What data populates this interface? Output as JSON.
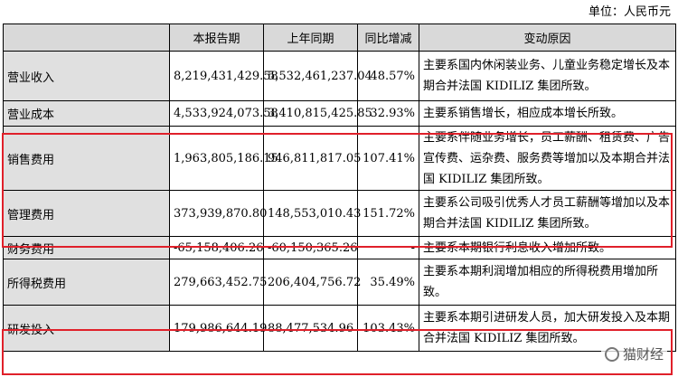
{
  "unit_label": "单位：人民币元",
  "headers": [
    "",
    "本报告期",
    "上年同期",
    "同比增减",
    "变动原因"
  ],
  "rows": [
    {
      "item": "营业收入",
      "current": "8,219,431,429.58",
      "prior": "5,532,461,237.04",
      "change": "48.57%",
      "reason": "主要系国内休闲装业务、儿童业务稳定增长及本期合并法国 KIDILIZ 集团所致。"
    },
    {
      "item": "营业成本",
      "current": "4,533,924,073.58",
      "prior": "3,410,815,425.85",
      "change": "32.93%",
      "reason": "主要系销售增长，相应成本增长所致。"
    },
    {
      "item": "销售费用",
      "current": "1,963,805,186.15",
      "prior": "946,811,817.05",
      "change": "107.41%",
      "reason": "主要系伴随业务增长，员工薪酬、租赁费、广告宣传费、运杂费、服务费等增加以及本期合并法国 KIDILIZ 集团所致。"
    },
    {
      "item": "管理费用",
      "current": "373,939,870.80",
      "prior": "148,553,010.43",
      "change": "151.72%",
      "reason": "主要系公司吸引优秀人才员工薪酬等增加以及本期合并法国 KIDILIZ 集团所致。"
    },
    {
      "item": "财务费用",
      "current": "-65,158,406.26",
      "prior": "-60,150,365.26",
      "change": "-",
      "reason": "主要系本期银行利息收入增加所致。"
    },
    {
      "item": "所得税费用",
      "current": "279,663,452.75",
      "prior": "206,404,756.72",
      "change": "35.49%",
      "reason": "主要系本期利润增加相应的所得税费用增加所致。"
    },
    {
      "item": "研发投入",
      "current": "179,986,644.19",
      "prior": "88,477,534.96",
      "change": "103.43%",
      "reason": "主要系本期引进研发人员，加大研发投入及本期合并法国 KIDILIZ 集团所致。"
    }
  ],
  "watermark": "猫财经",
  "highlight_color": "#e0202a"
}
